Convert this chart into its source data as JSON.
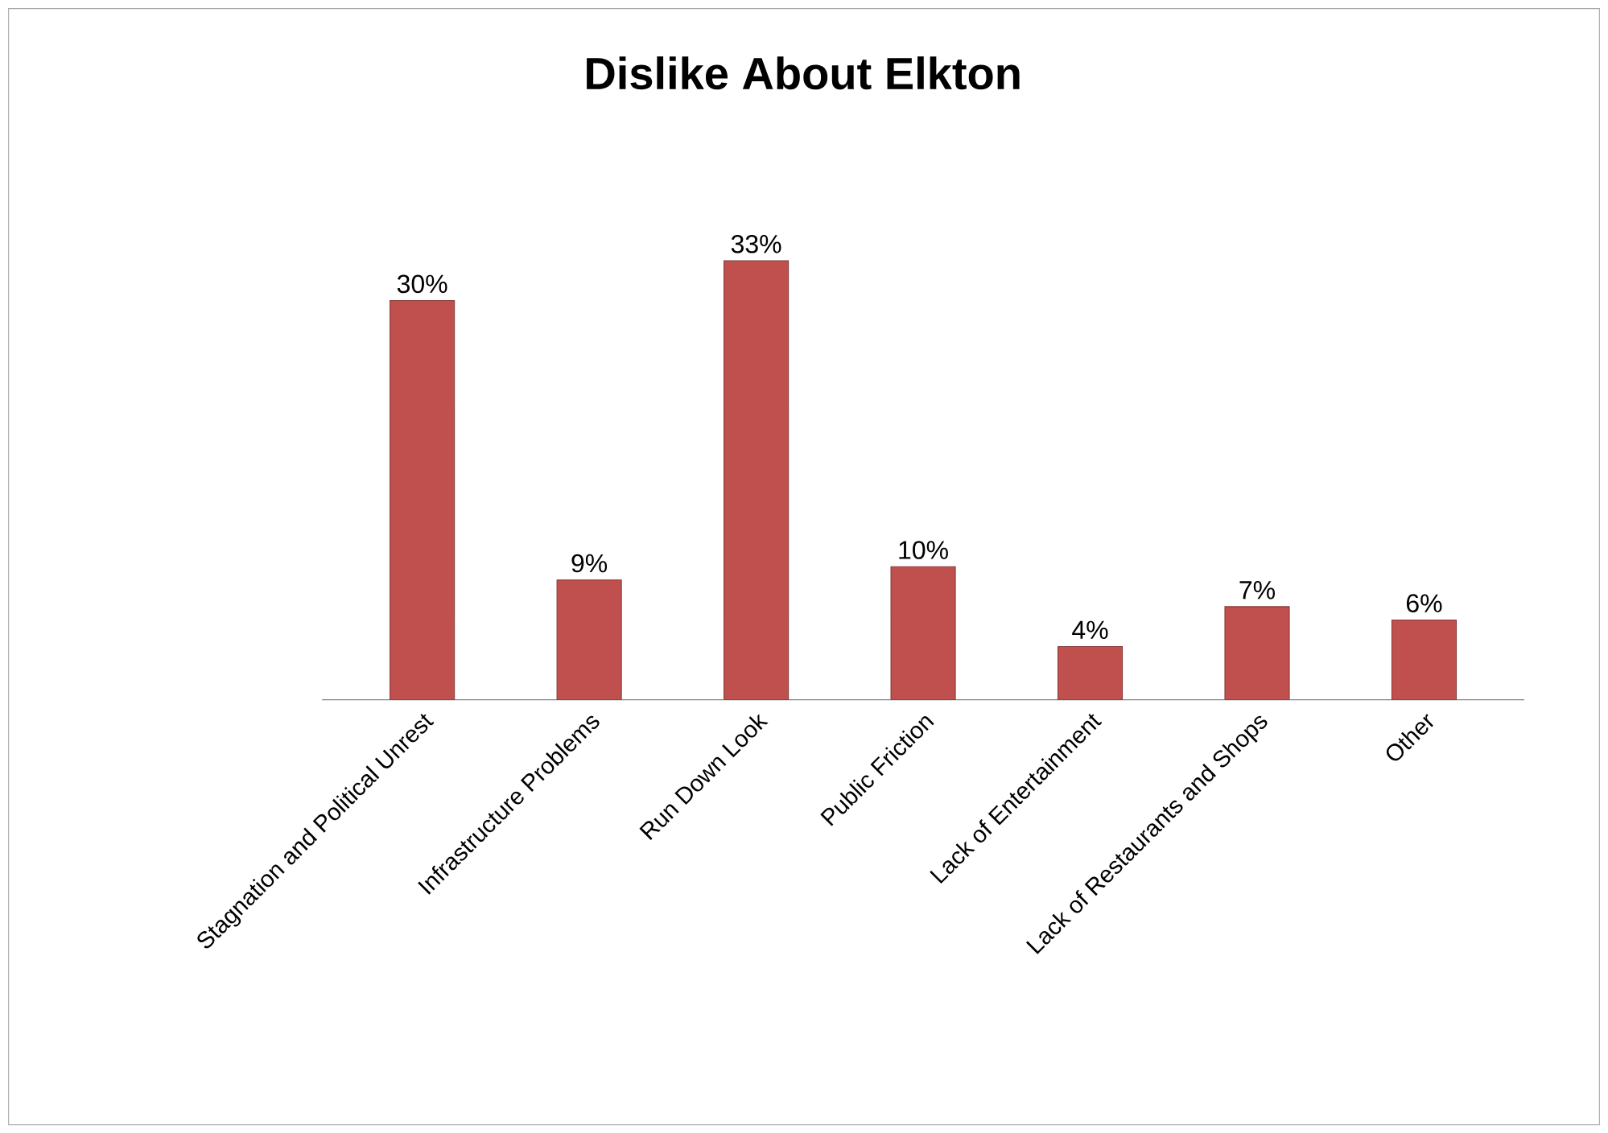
{
  "chart_data": {
    "type": "bar",
    "title": "Dislike About Elkton",
    "categories": [
      "Stagnation and Political Unrest",
      "Infrastructure Problems",
      "Run Down Look",
      "Public Friction",
      "Lack of Entertainment",
      "Lack of Restaurants and Shops",
      "Other"
    ],
    "values": [
      30,
      9,
      33,
      10,
      4,
      7,
      6
    ],
    "value_labels": [
      "30%",
      "9%",
      "33%",
      "10%",
      "4%",
      "7%",
      "6%"
    ],
    "color": "#c0504d",
    "tick_labels": "x"
  }
}
